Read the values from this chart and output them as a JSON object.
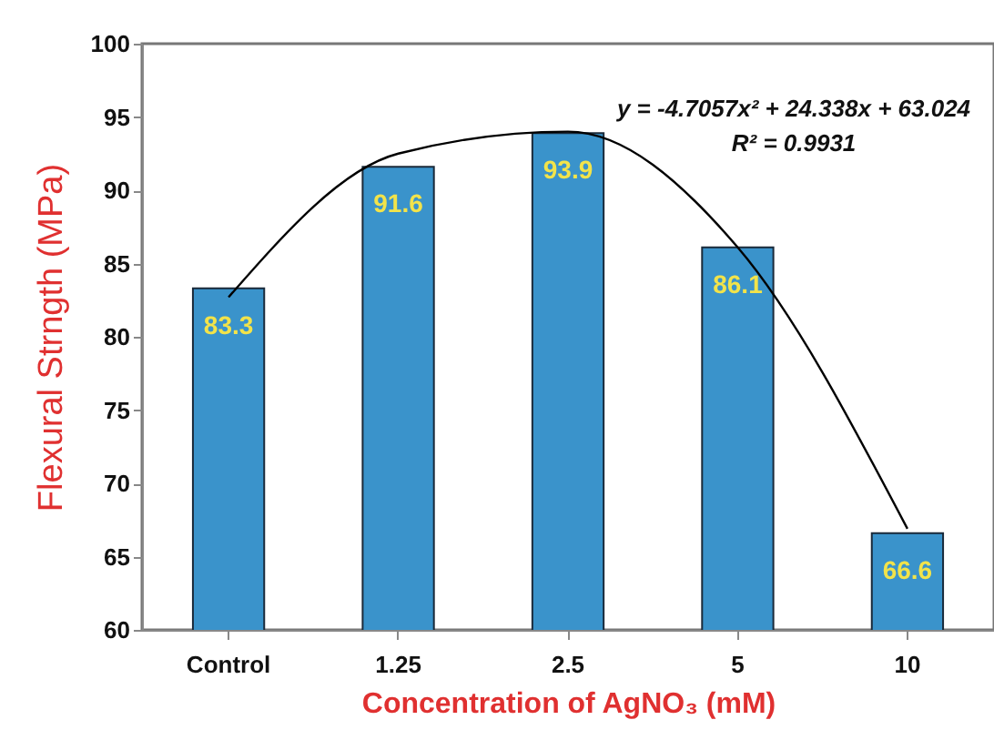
{
  "chart_data": {
    "type": "bar",
    "xlabel": "Concentration of AgNO₃ (mM)",
    "ylabel": "Flexural Strngth (MPa)",
    "categories": [
      "Control",
      "1.25",
      "2.5",
      "5",
      "10"
    ],
    "series": [
      {
        "color": "#3a93cb",
        "values": [
          83.3,
          91.6,
          93.9,
          86.1,
          66.6
        ],
        "value_labels": [
          "83.3",
          "91.6",
          "93.9",
          "86.1",
          "66.6"
        ]
      },
      {
        "type": "line",
        "color": "#000000",
        "values": [
          82.7,
          92.5,
          94.0,
          86.1,
          66.9
        ]
      }
    ],
    "ylim": [
      60,
      100
    ],
    "yticks": [
      60,
      65,
      70,
      75,
      80,
      85,
      90,
      95,
      100
    ],
    "grid": false,
    "annotations": [
      "y = -4.7057x² + 24.338x + 63.024",
      "R² = 0.9931"
    ]
  }
}
